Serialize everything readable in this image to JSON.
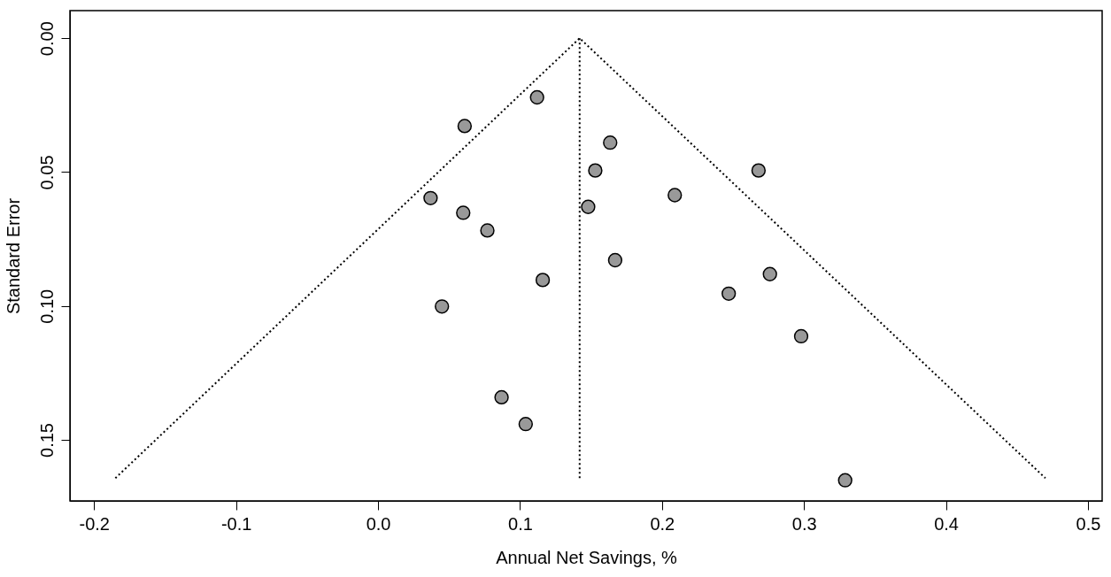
{
  "chart_data": {
    "type": "scatter",
    "xlabel": "Annual Net Savings, %",
    "ylabel": "Standard Error",
    "xlim": [
      -0.217,
      0.51
    ],
    "ylim": [
      0.1728,
      -0.0103
    ],
    "xticks": [
      -0.2,
      -0.1,
      {
        "value": 0,
        "label": "0.0"
      },
      0.1,
      0.2,
      0.3,
      0.4,
      0.5
    ],
    "yticks": [
      {
        "value": 0,
        "label": "0.00"
      },
      0.05,
      {
        "value": 0.1,
        "label": "0.10"
      },
      0.15
    ],
    "grid": false,
    "series": [
      {
        "color": "#999999",
        "marker": "circle",
        "x": [
          0.112,
          0.061,
          0.1635,
          0.153,
          0.268,
          0.037,
          0.209,
          0.148,
          0.06,
          0.077,
          0.167,
          0.276,
          0.116,
          0.247,
          0.045,
          0.298,
          0.087,
          0.104,
          0.329
        ],
        "values": [
          0.0221,
          0.0328,
          0.039,
          0.0494,
          0.0494,
          0.0597,
          0.0586,
          0.063,
          0.0652,
          0.0718,
          0.0829,
          0.0881,
          0.0903,
          0.0954,
          0.1002,
          0.1113,
          0.1341,
          0.1441,
          0.1651
        ]
      },
      {
        "type": "line",
        "color": "#000000",
        "line_style": "dotted",
        "marker": "none",
        "x": [
          -0.185,
          0.142,
          0.47
        ],
        "values": [
          0.1643,
          0,
          0.1643
        ]
      },
      {
        "type": "line",
        "color": "#000000",
        "line_style": "dotted",
        "marker": "none",
        "x": [
          0.142,
          0.142
        ],
        "values": [
          0,
          0.1643
        ]
      }
    ]
  }
}
